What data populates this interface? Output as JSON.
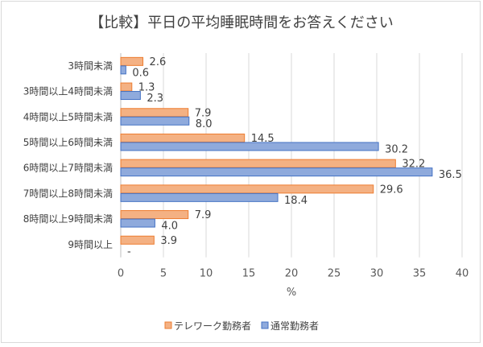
{
  "chart_data": {
    "type": "bar",
    "orientation": "horizontal",
    "title": "【比較】平日の平均睡眠時間をお答えください",
    "xlabel": "%",
    "ylabel": "",
    "xlim": [
      0,
      40
    ],
    "xticks": [
      "0",
      "5",
      "10",
      "15",
      "20",
      "25",
      "30",
      "35",
      "40"
    ],
    "grid": true,
    "legend_position": "bottom",
    "categories": [
      "3時間未満",
      "3時間以上4時間未満",
      "4時間以上5時間未満",
      "5時間以上6時間未満",
      "6時間以上7時間未満",
      "7時間以上8時間未満",
      "8時間以上9時間未満",
      "9時間以上"
    ],
    "series": [
      {
        "name": "テレワーク勤務者",
        "fill": "#F4B183",
        "stroke": "#ED7D31",
        "values": [
          2.6,
          1.3,
          7.9,
          14.5,
          32.2,
          29.6,
          7.9,
          3.9
        ],
        "labels": [
          "2.6",
          "1.3",
          "7.9",
          "14.5",
          "32.2",
          "29.6",
          "7.9",
          "3.9"
        ]
      },
      {
        "name": "通常勤務者",
        "fill": "#8FAADC",
        "stroke": "#4472C4",
        "values": [
          0.6,
          2.3,
          8.0,
          30.2,
          36.5,
          18.4,
          4.0,
          null
        ],
        "labels": [
          "0.6",
          "2.3",
          "8.0",
          "30.2",
          "36.5",
          "18.4",
          "4.0",
          "-"
        ]
      }
    ]
  }
}
